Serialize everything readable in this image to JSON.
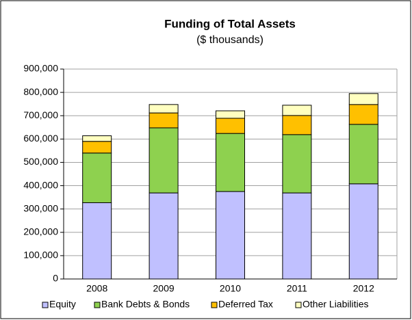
{
  "chart_data": {
    "type": "stacked_bar",
    "title": "Funding of Total Assets",
    "subtitle": "($ thousands)",
    "categories": [
      "2008",
      "2009",
      "2010",
      "2011",
      "2012"
    ],
    "series": [
      {
        "name": "Equity",
        "color": "#c0c0ff",
        "values": [
          327000,
          369000,
          375000,
          369000,
          408000
        ]
      },
      {
        "name": "Bank Debts & Bonds",
        "color": "#8ed14f",
        "values": [
          213000,
          279000,
          249000,
          250000,
          255000
        ]
      },
      {
        "name": "Deferred Tax",
        "color": "#ffc000",
        "values": [
          50000,
          64000,
          65000,
          82000,
          85000
        ]
      },
      {
        "name": "Other Liabilities",
        "color": "#ffffc0",
        "values": [
          24000,
          36000,
          32000,
          44000,
          47000
        ]
      }
    ],
    "ylim": [
      0,
      900000
    ],
    "yticks": [
      0,
      {
        "value": 100000,
        "label": "100,000"
      },
      {
        "value": 200000,
        "label": "200,000"
      },
      {
        "value": 300000,
        "label": "300,000"
      },
      {
        "value": 400000,
        "label": "400,000"
      },
      {
        "value": 500000,
        "label": "500,000"
      },
      {
        "value": 600000,
        "label": "600,000"
      },
      {
        "value": 700000,
        "label": "700,000"
      },
      {
        "value": 800000,
        "label": "800,000"
      },
      {
        "value": 900000,
        "label": "900,000"
      }
    ],
    "grid": true,
    "legend": "bottom"
  }
}
